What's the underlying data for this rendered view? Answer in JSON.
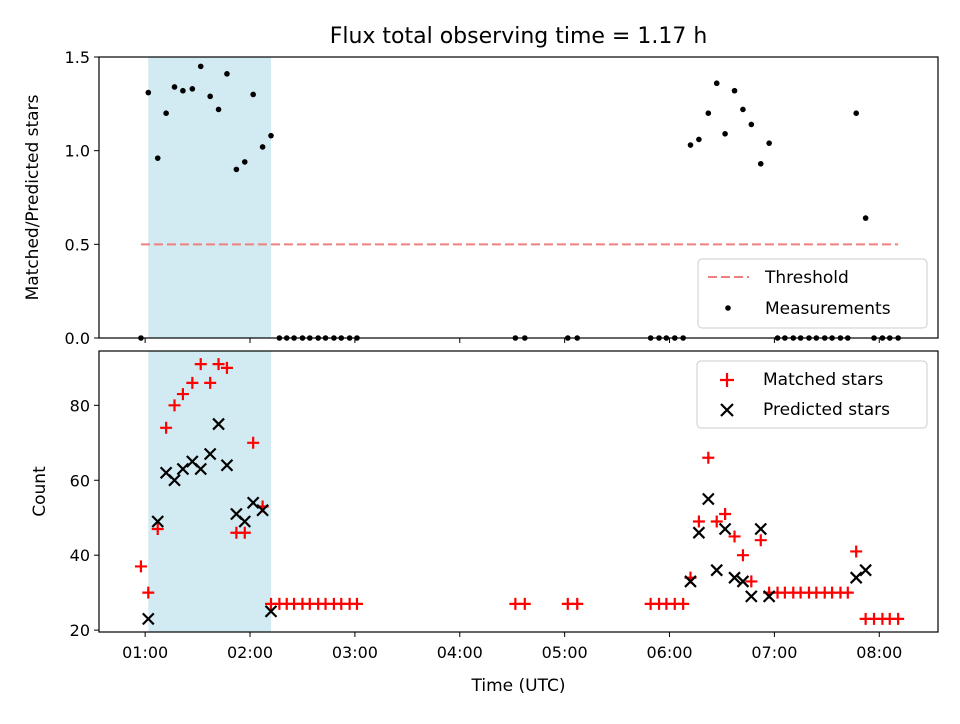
{
  "title": "Flux total observing time = 1.17 h",
  "colors": {
    "threshold": "#f08080",
    "matched": "#ff0000",
    "predicted": "#000000",
    "shade": "#add8e6"
  },
  "chart_data": [
    {
      "type": "scatter",
      "ylabel": "Matched/Predicted stars",
      "ylim": [
        0,
        1.5
      ],
      "yticks": [
        "0.0",
        "0.5",
        "1.0",
        "1.5"
      ],
      "xlim_hours": [
        0.56,
        8.56
      ],
      "shaded_region_hours": [
        1.03,
        2.2
      ],
      "threshold": 0.5,
      "threshold_range_hours": [
        0.96,
        8.18
      ],
      "legend": {
        "position": "lower-right",
        "threshold_label": "Threshold",
        "measurements_label": "Measurements"
      },
      "series": [
        {
          "name": "Measurements",
          "x_hours": [
            0.96,
            1.03,
            1.12,
            1.2,
            1.28,
            1.36,
            1.45,
            1.53,
            1.62,
            1.7,
            1.78,
            1.87,
            1.95,
            2.03,
            2.12,
            2.2,
            2.28,
            2.35,
            2.42,
            2.5,
            2.57,
            2.65,
            2.72,
            2.8,
            2.87,
            2.95,
            3.02,
            4.53,
            4.62,
            5.03,
            5.12,
            5.82,
            5.9,
            5.97,
            6.05,
            6.13,
            6.2,
            6.28,
            6.37,
            6.45,
            6.53,
            6.62,
            6.7,
            6.78,
            6.87,
            6.95,
            7.03,
            7.1,
            7.18,
            7.25,
            7.33,
            7.4,
            7.48,
            7.55,
            7.63,
            7.7,
            7.78,
            7.87,
            7.95,
            8.03,
            8.1,
            8.18
          ],
          "y": [
            0,
            1.31,
            0.96,
            1.2,
            1.34,
            1.32,
            1.33,
            1.45,
            1.29,
            1.22,
            1.41,
            0.9,
            0.94,
            1.3,
            1.02,
            1.08,
            0,
            0,
            0,
            0,
            0,
            0,
            0,
            0,
            0,
            0,
            0,
            0,
            0,
            0,
            0,
            0,
            0,
            0,
            0,
            0,
            1.03,
            1.06,
            1.2,
            1.36,
            1.09,
            1.32,
            1.22,
            1.14,
            0.93,
            1.04,
            0,
            0,
            0,
            0,
            0,
            0,
            0,
            0,
            0,
            0,
            1.2,
            0.64,
            0,
            0,
            0,
            0
          ]
        }
      ]
    },
    {
      "type": "scatter",
      "xlabel": "Time (UTC)",
      "ylabel": "Count",
      "ylim": [
        19.5,
        94.5
      ],
      "yticks": [
        "20",
        "40",
        "60",
        "80"
      ],
      "xticks": [
        "01:00",
        "02:00",
        "03:00",
        "04:00",
        "05:00",
        "06:00",
        "07:00",
        "08:00"
      ],
      "xlim_hours": [
        0.56,
        8.56
      ],
      "shaded_region_hours": [
        1.03,
        2.2
      ],
      "legend": {
        "position": "top-right"
      },
      "series": [
        {
          "name": "Matched stars",
          "x_hours": [
            0.96,
            1.03,
            1.12,
            1.2,
            1.28,
            1.36,
            1.45,
            1.53,
            1.62,
            1.7,
            1.78,
            1.87,
            1.95,
            2.03,
            2.12,
            2.2,
            2.28,
            2.35,
            2.42,
            2.5,
            2.57,
            2.65,
            2.72,
            2.8,
            2.87,
            2.95,
            3.02,
            4.53,
            4.62,
            5.03,
            5.12,
            5.82,
            5.9,
            5.97,
            6.05,
            6.13,
            6.2,
            6.28,
            6.37,
            6.45,
            6.53,
            6.62,
            6.7,
            6.78,
            6.87,
            6.95,
            7.03,
            7.1,
            7.18,
            7.25,
            7.33,
            7.4,
            7.48,
            7.55,
            7.63,
            7.7,
            7.78,
            7.87,
            7.95,
            8.03,
            8.1,
            8.18
          ],
          "y": [
            37,
            30,
            47,
            74,
            80,
            83,
            86,
            91,
            86,
            91,
            90,
            46,
            46,
            70,
            53,
            27,
            27,
            27,
            27,
            27,
            27,
            27,
            27,
            27,
            27,
            27,
            27,
            27,
            27,
            27,
            27,
            27,
            27,
            27,
            27,
            27,
            34,
            49,
            66,
            49,
            51,
            45,
            40,
            33,
            44,
            30,
            30,
            30,
            30,
            30,
            30,
            30,
            30,
            30,
            30,
            30,
            41,
            23,
            23,
            23,
            23,
            23
          ]
        },
        {
          "name": "Predicted stars",
          "x_hours": [
            1.03,
            1.12,
            1.2,
            1.28,
            1.36,
            1.45,
            1.53,
            1.62,
            1.7,
            1.78,
            1.87,
            1.95,
            2.03,
            2.12,
            2.2,
            6.2,
            6.28,
            6.37,
            6.45,
            6.53,
            6.62,
            6.7,
            6.78,
            6.87,
            6.95,
            7.78,
            7.87
          ],
          "y": [
            23,
            49,
            62,
            60,
            63,
            65,
            63,
            67,
            75,
            64,
            51,
            49,
            54,
            52,
            25,
            33,
            46,
            55,
            36,
            47,
            34,
            33,
            29,
            47,
            29,
            34,
            36
          ]
        }
      ]
    }
  ]
}
